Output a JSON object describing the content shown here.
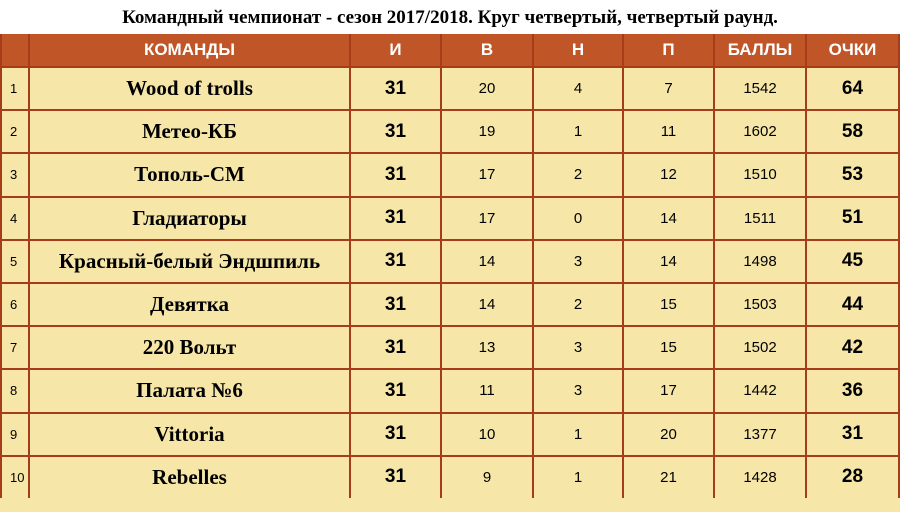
{
  "title": "Командный чемпионат - сезон 2017/2018. Круг четвертый, четвертый раунд.",
  "headers": {
    "num": "",
    "team": "КОМАНДЫ",
    "i": "И",
    "v": "В",
    "n": "Н",
    "p": "П",
    "balls": "БАЛЛЫ",
    "points": "ОЧКИ"
  },
  "rows": [
    {
      "num": "1",
      "team": "Wood of trolls",
      "i": "31",
      "v": "20",
      "n": "4",
      "p": "7",
      "balls": "1542",
      "points": "64"
    },
    {
      "num": "2",
      "team": "Метео-КБ",
      "i": "31",
      "v": "19",
      "n": "1",
      "p": "11",
      "balls": "1602",
      "points": "58"
    },
    {
      "num": "3",
      "team": "Тополь-СМ",
      "i": "31",
      "v": "17",
      "n": "2",
      "p": "12",
      "balls": "1510",
      "points": "53"
    },
    {
      "num": "4",
      "team": "Гладиаторы",
      "i": "31",
      "v": "17",
      "n": "0",
      "p": "14",
      "balls": "1511",
      "points": "51"
    },
    {
      "num": "5",
      "team": "Красный-белый Эндшпиль",
      "i": "31",
      "v": "14",
      "n": "3",
      "p": "14",
      "balls": "1498",
      "points": "45"
    },
    {
      "num": "6",
      "team": "Девятка",
      "i": "31",
      "v": "14",
      "n": "2",
      "p": "15",
      "balls": "1503",
      "points": "44"
    },
    {
      "num": "7",
      "team": "220 Вольт",
      "i": "31",
      "v": "13",
      "n": "3",
      "p": "15",
      "balls": "1502",
      "points": "42"
    },
    {
      "num": "8",
      "team": "Палата №6",
      "i": "31",
      "v": "11",
      "n": "3",
      "p": "17",
      "balls": "1442",
      "points": "36"
    },
    {
      "num": "9",
      "team": "Vittoria",
      "i": "31",
      "v": "10",
      "n": "1",
      "p": "20",
      "balls": "1377",
      "points": "31"
    },
    {
      "num": "10",
      "team": "Rebelles",
      "i": "31",
      "v": "9",
      "n": "1",
      "p": "21",
      "balls": "1428",
      "points": "28"
    }
  ]
}
